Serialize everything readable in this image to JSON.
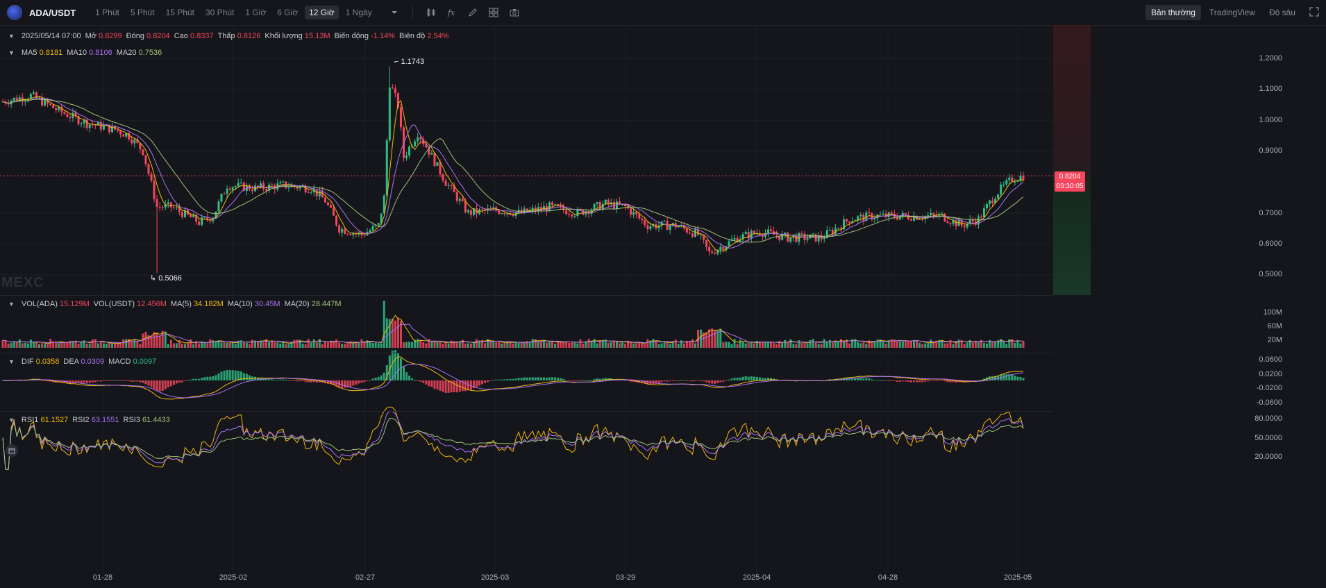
{
  "toolbar": {
    "pair": "ADA/USDT",
    "intervals": [
      "1 Phút",
      "5 Phút",
      "15 Phút",
      "30 Phút",
      "1 Giờ",
      "6 Giờ",
      "12 Giờ",
      "1 Ngày"
    ],
    "active_interval": "12 Giờ",
    "view_tabs": [
      "Bản thường",
      "TradingView",
      "Độ sâu"
    ],
    "active_view": "Bản thường",
    "icons": [
      "candle-type-icon",
      "indicator-icon",
      "draw-icon",
      "layout-icon",
      "screenshot-icon"
    ]
  },
  "ohlc": {
    "date": "2025/05/14 07:00",
    "open_label": "Mở",
    "open": "0.8299",
    "close_label": "Đóng",
    "close": "0.8204",
    "high_label": "Cao",
    "high": "0.8337",
    "low_label": "Thấp",
    "low": "0.8126",
    "volume_label": "Khối lượng",
    "volume": "15.13M",
    "change_label": "Biến động",
    "change": "-1.14%",
    "amplitude_label": "Biên độ",
    "amplitude": "2.54%"
  },
  "ma": {
    "ma5_label": "MA5",
    "ma5": "0.8181",
    "ma10_label": "MA10",
    "ma10": "0.8106",
    "ma20_label": "MA20",
    "ma20": "0.7536"
  },
  "vol": {
    "vol_ada_label": "VOL(ADA)",
    "vol_ada": "15.129M",
    "vol_usdt_label": "VOL(USDT)",
    "vol_usdt": "12.456M",
    "ma5_label": "MA(5)",
    "ma5": "34.182M",
    "ma10_label": "MA(10)",
    "ma10": "30.45M",
    "ma20_label": "MA(20)",
    "ma20": "28.447M"
  },
  "macd": {
    "dif_label": "DIF",
    "dif": "0.0358",
    "dea_label": "DEA",
    "dea": "0.0309",
    "macd_label": "MACD",
    "macd": "0.0097"
  },
  "rsi": {
    "rsi1_label": "RSI1",
    "rsi1": "61.1527",
    "rsi2_label": "RSI2",
    "rsi2": "63.1551",
    "rsi3_label": "RSI3",
    "rsi3": "61.4433"
  },
  "price_axis": [
    "1.2000",
    "1.1000",
    "1.0000",
    "0.9000",
    "0.7000",
    "0.6000",
    "0.5000"
  ],
  "vol_axis": [
    "100M",
    "60M",
    "20M"
  ],
  "macd_axis": [
    "0.0600",
    "0.0200",
    "-0.0200",
    "-0.0600"
  ],
  "rsi_axis": [
    "80.0000",
    "50.0000",
    "20.0000"
  ],
  "last_price": {
    "price": "0.8204",
    "countdown": "03:30:05"
  },
  "annotations": {
    "high": "1.1743",
    "low": "0.5066"
  },
  "watermark": "MEXC",
  "x_axis": [
    "01-28",
    "2025-02",
    "02-27",
    "2025-03",
    "03-29",
    "2025-04",
    "04-28",
    "2025-05"
  ],
  "colors": {
    "up": "#2ebd85",
    "down": "#f6465d",
    "ma5": "#f0b90b",
    "ma10": "#a872f5",
    "ma20": "#9ec27a"
  },
  "chart_data": {
    "type": "line",
    "title": "ADA/USDT",
    "x": [
      "2025-01-14",
      "2025-01-21",
      "2025-01-28",
      "2025-02-01",
      "2025-02-03",
      "2025-02-10",
      "2025-02-17",
      "2025-02-24",
      "2025-02-27",
      "2025-03-02",
      "2025-03-03",
      "2025-03-05",
      "2025-03-10",
      "2025-03-17",
      "2025-03-24",
      "2025-03-29",
      "2025-04-03",
      "2025-04-07",
      "2025-04-10",
      "2025-04-17",
      "2025-04-24",
      "2025-04-28",
      "2025-05-05",
      "2025-05-10",
      "2025-05-14"
    ],
    "series": [
      {
        "name": "Close",
        "values": [
          1.06,
          0.99,
          0.95,
          0.93,
          0.74,
          0.79,
          0.78,
          0.66,
          0.66,
          1.1,
          0.96,
          0.81,
          0.71,
          0.72,
          0.73,
          0.66,
          0.64,
          0.56,
          0.62,
          0.62,
          0.68,
          0.69,
          0.67,
          0.8,
          0.8204
        ]
      }
    ],
    "ylim": [
      0.45,
      1.25
    ]
  }
}
